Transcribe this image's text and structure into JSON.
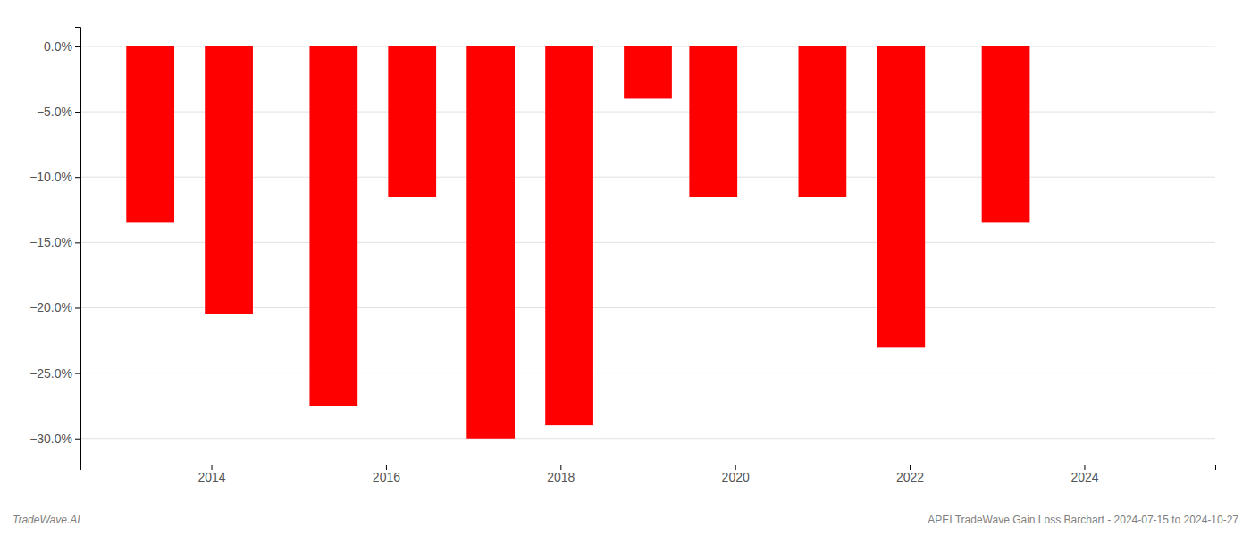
{
  "chart_data": {
    "type": "bar",
    "x": [
      2013.3,
      2014.2,
      2015.4,
      2016.3,
      2017.2,
      2018.1,
      2019.0,
      2019.75,
      2021.0,
      2021.9,
      2023.1
    ],
    "values": [
      -13.5,
      -20.5,
      -27.5,
      -11.5,
      -30.0,
      -29.0,
      -4.0,
      -11.5,
      -11.5,
      -23.0,
      -13.5
    ],
    "color": "#ff0000",
    "xlim": [
      2012.5,
      2025.5
    ],
    "xticks": [
      2014,
      2016,
      2018,
      2020,
      2022,
      2024
    ],
    "ylim": [
      -32,
      1.5
    ],
    "yticks": [
      {
        "value": 0.0,
        "label": "0.0%"
      },
      {
        "value": -5.0,
        "label": "−5.0%"
      },
      {
        "value": -10.0,
        "label": "−10.0%"
      },
      {
        "value": -15.0,
        "label": "−15.0%"
      },
      {
        "value": -20.0,
        "label": "−20.0%"
      },
      {
        "value": -25.0,
        "label": "−25.0%"
      },
      {
        "value": -30.0,
        "label": "−30.0%"
      }
    ],
    "grid": true,
    "annotations": [
      "TradeWave.AI",
      "APEI TradeWave Gain Loss Barchart - 2024-07-15 to 2024-10-27"
    ]
  }
}
